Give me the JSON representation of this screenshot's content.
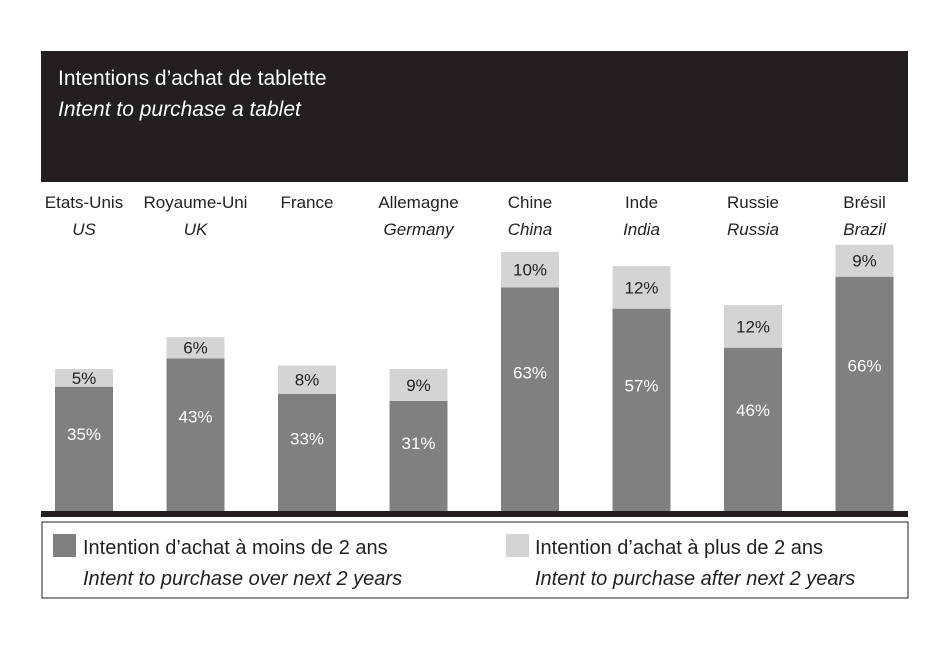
{
  "colors": {
    "header_bg": "#231f20",
    "series_near": "#808080",
    "series_far": "#d4d4d4",
    "text": "#231f20",
    "axis": "#231f20"
  },
  "chart_data": {
    "type": "bar",
    "stacked": true,
    "title": "Intentions d’achat de tablette",
    "subtitle": "Intent to purchase a tablet",
    "categories": [
      {
        "fr": "Etats-Unis",
        "en": "US"
      },
      {
        "fr": "Royaume-Uni",
        "en": "UK"
      },
      {
        "fr": "France",
        "en": ""
      },
      {
        "fr": "Allemagne",
        "en": "Germany"
      },
      {
        "fr": "Chine",
        "en": "China"
      },
      {
        "fr": "Inde",
        "en": "India"
      },
      {
        "fr": "Russie",
        "en": "Russia"
      },
      {
        "fr": "Brésil",
        "en": "Brazil"
      }
    ],
    "series": [
      {
        "name": "Intention d’achat à moins de 2 ans",
        "name_en": "Intent to purchase over next 2 years",
        "values": [
          35,
          43,
          33,
          31,
          63,
          57,
          46,
          66
        ],
        "labels": [
          "35%",
          "43%",
          "33%",
          "31%",
          "63%",
          "57%",
          "46%",
          "66%"
        ]
      },
      {
        "name": "Intention d’achat à plus de 2 ans",
        "name_en": "Intent to purchase after next 2 years",
        "values": [
          5,
          6,
          8,
          9,
          10,
          12,
          12,
          9
        ],
        "labels": [
          "5%",
          "6%",
          "8%",
          "9%",
          "10%",
          "12%",
          "12%",
          "9%"
        ]
      }
    ],
    "ylim": [
      0,
      80
    ],
    "grid": false,
    "legend_position": "bottom"
  }
}
